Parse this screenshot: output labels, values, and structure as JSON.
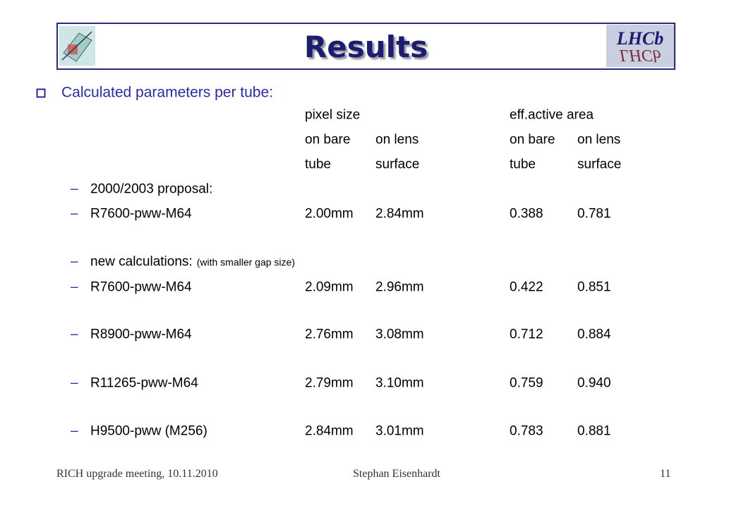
{
  "header": {
    "title": "Results"
  },
  "bullet": "Calculated parameters per tube:",
  "table": {
    "group_headers": [
      "pixel size",
      "eff.active area"
    ],
    "sub_headers": [
      [
        "on bare",
        "on lens",
        "on bare",
        "on lens"
      ],
      [
        "tube",
        "surface",
        "tube",
        "surface"
      ]
    ],
    "rows": [
      {
        "label": "2000/2003 proposal:"
      },
      {
        "label": "R7600-pww-M64",
        "cells": [
          "2.00mm",
          "2.84mm",
          "0.388",
          "0.781"
        ]
      },
      {
        "label": "new calculations:",
        "note": "(with smaller gap size)"
      },
      {
        "label": "R7600-pww-M64",
        "cells": [
          "2.09mm",
          "2.96mm",
          "0.422",
          "0.851"
        ]
      },
      {
        "label": "R8900-pww-M64",
        "cells": [
          "2.76mm",
          "3.08mm",
          "0.712",
          "0.884"
        ]
      },
      {
        "label": "R11265-pww-M64",
        "cells": [
          "2.79mm",
          "3.10mm",
          "0.759",
          "0.940"
        ]
      },
      {
        "label": "H9500-pww (M256)",
        "cells": [
          "2.84mm",
          "3.01mm",
          "0.783",
          "0.881"
        ]
      }
    ]
  },
  "footer": {
    "left": "RICH upgrade meeting, 10.11.2010",
    "center": "Stephan Eisenhardt",
    "page": "11"
  }
}
